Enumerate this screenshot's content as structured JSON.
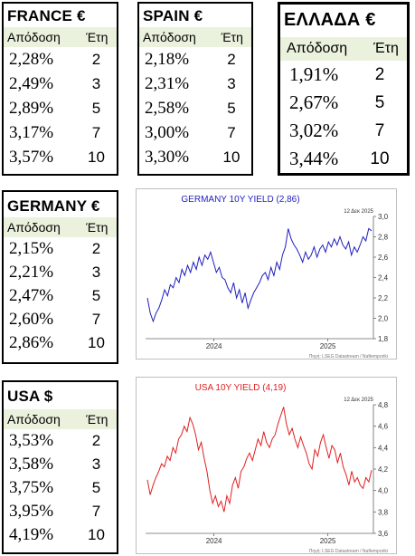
{
  "france": {
    "title": "FRANCE €",
    "col_yield": "Απόδοση",
    "col_years": "Έτη",
    "rows": [
      {
        "yield": "2,28%",
        "years": "2"
      },
      {
        "yield": "2,49%",
        "years": "3"
      },
      {
        "yield": "2,89%",
        "years": "5"
      },
      {
        "yield": "3,17%",
        "years": "7"
      },
      {
        "yield": "3,57%",
        "years": "10"
      }
    ]
  },
  "spain": {
    "title": "SPAIN €",
    "col_yield": "Απόδοση",
    "col_years": "Έτη",
    "rows": [
      {
        "yield": "2,18%",
        "years": "2"
      },
      {
        "yield": "2,31%",
        "years": "3"
      },
      {
        "yield": "2,58%",
        "years": "5"
      },
      {
        "yield": "3,00%",
        "years": "7"
      },
      {
        "yield": "3,30%",
        "years": "10"
      }
    ]
  },
  "greece": {
    "title": "ΕΛΛΑΔΑ €",
    "col_yield": "Απόδοση",
    "col_years": "Έτη",
    "rows": [
      {
        "yield": "1,91%",
        "years": "2"
      },
      {
        "yield": "2,67%",
        "years": "5"
      },
      {
        "yield": "3,02%",
        "years": "7"
      },
      {
        "yield": "3,44%",
        "years": "10"
      }
    ]
  },
  "germany": {
    "title": "GERMANY €",
    "col_yield": "Απόδοση",
    "col_years": "Έτη",
    "rows": [
      {
        "yield": "2,15%",
        "years": "2"
      },
      {
        "yield": "2,21%",
        "years": "3"
      },
      {
        "yield": "2,47%",
        "years": "5"
      },
      {
        "yield": "2,60%",
        "years": "7"
      },
      {
        "yield": "2,86%",
        "years": "10"
      }
    ]
  },
  "usa": {
    "title": "USA $",
    "col_yield": "Απόδοση",
    "col_years": "Έτη",
    "rows": [
      {
        "yield": "3,53%",
        "years": "2"
      },
      {
        "yield": "3,58%",
        "years": "3"
      },
      {
        "yield": "3,75%",
        "years": "5"
      },
      {
        "yield": "3,95%",
        "years": "7"
      },
      {
        "yield": "4,19%",
        "years": "10"
      }
    ]
  },
  "colors": {
    "header_bg": "#eaf1dd",
    "germany_line": "#1f1fbf",
    "usa_line": "#e02020"
  },
  "chart_data": [
    {
      "type": "line",
      "title": "GERMANY 10Y YIELD  (2,86)",
      "date_label": "12 Δεκ 2025",
      "source": "Πηγή: LSEG Datastream / Naftemporiki",
      "ylim": [
        1.8,
        3.0
      ],
      "yticks": [
        "1,8",
        "2,0",
        "2,2",
        "2,4",
        "2,6",
        "2,8",
        "3,0"
      ],
      "xticks": [
        "2024",
        "2025"
      ],
      "grid": false,
      "x_start": "2023-06",
      "x_end": "2025-12",
      "values": [
        2.2,
        2.05,
        1.97,
        2.05,
        2.1,
        2.18,
        2.28,
        2.22,
        2.33,
        2.3,
        2.4,
        2.35,
        2.48,
        2.42,
        2.52,
        2.45,
        2.55,
        2.48,
        2.6,
        2.52,
        2.62,
        2.58,
        2.65,
        2.55,
        2.45,
        2.5,
        2.4,
        2.38,
        2.3,
        2.25,
        2.35,
        2.2,
        2.28,
        2.15,
        2.25,
        2.1,
        2.18,
        2.25,
        2.3,
        2.35,
        2.42,
        2.45,
        2.38,
        2.5,
        2.42,
        2.55,
        2.48,
        2.62,
        2.7,
        2.88,
        2.78,
        2.72,
        2.68,
        2.62,
        2.55,
        2.65,
        2.58,
        2.62,
        2.7,
        2.6,
        2.68,
        2.72,
        2.65,
        2.75,
        2.7,
        2.78,
        2.72,
        2.8,
        2.72,
        2.68,
        2.75,
        2.62,
        2.7,
        2.65,
        2.72,
        2.8,
        2.76,
        2.88,
        2.86
      ]
    },
    {
      "type": "line",
      "title": "USA 10Y YIELD  (4,19)",
      "date_label": "12 Δεκ 2025",
      "source": "Πηγή: LSEG Datastream / Naftemporiki",
      "ylim": [
        3.6,
        4.8
      ],
      "yticks": [
        "3,6",
        "3,8",
        "4,0",
        "4,2",
        "4,4",
        "4,6",
        "4,8"
      ],
      "xticks": [
        "2024",
        "2025"
      ],
      "grid": false,
      "x_start": "2023-06",
      "x_end": "2025-12",
      "values": [
        4.1,
        3.96,
        4.05,
        4.12,
        4.18,
        4.25,
        4.22,
        4.32,
        4.28,
        4.4,
        4.35,
        4.48,
        4.52,
        4.6,
        4.55,
        4.68,
        4.62,
        4.52,
        4.38,
        4.45,
        4.3,
        4.18,
        4.0,
        3.88,
        3.95,
        3.85,
        3.9,
        3.8,
        3.95,
        3.88,
        4.05,
        4.12,
        4.02,
        4.18,
        4.22,
        4.3,
        4.35,
        4.28,
        4.38,
        4.48,
        4.42,
        4.55,
        4.45,
        4.4,
        4.48,
        4.52,
        4.62,
        4.7,
        4.78,
        4.62,
        4.52,
        4.58,
        4.48,
        4.4,
        4.5,
        4.42,
        4.35,
        4.25,
        4.2,
        4.38,
        4.32,
        4.45,
        4.52,
        4.4,
        4.3,
        4.42,
        4.38,
        4.26,
        4.35,
        4.22,
        4.15,
        4.05,
        4.18,
        4.08,
        4.12,
        4.05,
        4.02,
        4.12,
        4.08,
        4.19
      ]
    }
  ]
}
